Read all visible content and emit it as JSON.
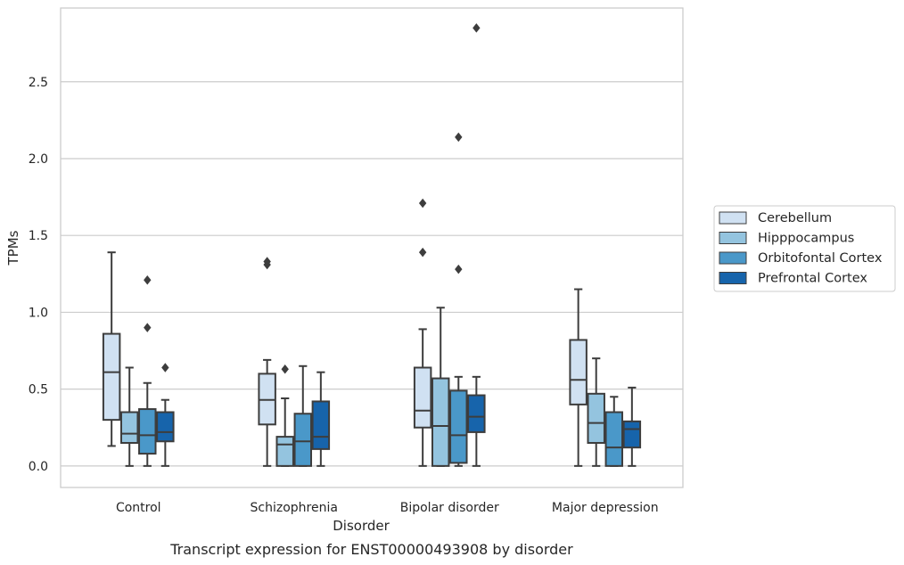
{
  "chart_data": {
    "type": "box",
    "title": "",
    "caption": "Transcript expression for ENST00000493908 by disorder",
    "xlabel": "Disorder",
    "ylabel": "TPMs",
    "ylim": [
      -0.14,
      2.98
    ],
    "yticks": [
      "0.0",
      "0.5",
      "1.0",
      "1.5",
      "2.0",
      "2.5"
    ],
    "grid": "horizontal",
    "legend_position": "right",
    "categories": [
      "Control",
      "Schizophrenia",
      "Bipolar disorder",
      "Major depression"
    ],
    "series": [
      {
        "name": "Cerebellum",
        "color": "#d0e1f2",
        "boxes": [
          {
            "whisker_low": 0.13,
            "q1": 0.3,
            "median": 0.61,
            "q3": 0.86,
            "whisker_high": 1.39,
            "outliers": []
          },
          {
            "whisker_low": 0.0,
            "q1": 0.27,
            "median": 0.43,
            "q3": 0.6,
            "whisker_high": 0.69,
            "outliers": [
              1.31,
              1.33
            ]
          },
          {
            "whisker_low": 0.0,
            "q1": 0.25,
            "median": 0.36,
            "q3": 0.64,
            "whisker_high": 0.89,
            "outliers": [
              1.39,
              1.71
            ]
          },
          {
            "whisker_low": 0.0,
            "q1": 0.4,
            "median": 0.56,
            "q3": 0.82,
            "whisker_high": 1.15,
            "outliers": []
          }
        ]
      },
      {
        "name": "Hipppocampus",
        "color": "#94c4df",
        "boxes": [
          {
            "whisker_low": 0.0,
            "q1": 0.15,
            "median": 0.21,
            "q3": 0.35,
            "whisker_high": 0.64,
            "outliers": []
          },
          {
            "whisker_low": 0.0,
            "q1": 0.0,
            "median": 0.14,
            "q3": 0.19,
            "whisker_high": 0.44,
            "outliers": [
              0.63
            ]
          },
          {
            "whisker_low": 0.0,
            "q1": 0.0,
            "median": 0.26,
            "q3": 0.57,
            "whisker_high": 1.03,
            "outliers": []
          },
          {
            "whisker_low": 0.0,
            "q1": 0.15,
            "median": 0.28,
            "q3": 0.47,
            "whisker_high": 0.7,
            "outliers": []
          }
        ]
      },
      {
        "name": "Orbitofontal Cortex",
        "color": "#4a98c9",
        "boxes": [
          {
            "whisker_low": 0.0,
            "q1": 0.08,
            "median": 0.2,
            "q3": 0.37,
            "whisker_high": 0.54,
            "outliers": [
              0.9,
              1.21
            ]
          },
          {
            "whisker_low": 0.0,
            "q1": 0.0,
            "median": 0.16,
            "q3": 0.34,
            "whisker_high": 0.65,
            "outliers": []
          },
          {
            "whisker_low": 0.0,
            "q1": 0.02,
            "median": 0.2,
            "q3": 0.49,
            "whisker_high": 0.58,
            "outliers": [
              1.28,
              2.14
            ]
          },
          {
            "whisker_low": 0.0,
            "q1": 0.0,
            "median": 0.12,
            "q3": 0.35,
            "whisker_high": 0.45,
            "outliers": []
          }
        ]
      },
      {
        "name": "Prefrontal Cortex",
        "color": "#1764ab",
        "boxes": [
          {
            "whisker_low": 0.0,
            "q1": 0.16,
            "median": 0.22,
            "q3": 0.35,
            "whisker_high": 0.43,
            "outliers": [
              0.64
            ]
          },
          {
            "whisker_low": 0.0,
            "q1": 0.11,
            "median": 0.19,
            "q3": 0.42,
            "whisker_high": 0.61,
            "outliers": []
          },
          {
            "whisker_low": 0.0,
            "q1": 0.22,
            "median": 0.32,
            "q3": 0.46,
            "whisker_high": 0.58,
            "outliers": [
              2.85
            ]
          },
          {
            "whisker_low": 0.0,
            "q1": 0.12,
            "median": 0.24,
            "q3": 0.29,
            "whisker_high": 0.51,
            "outliers": []
          }
        ]
      }
    ]
  }
}
